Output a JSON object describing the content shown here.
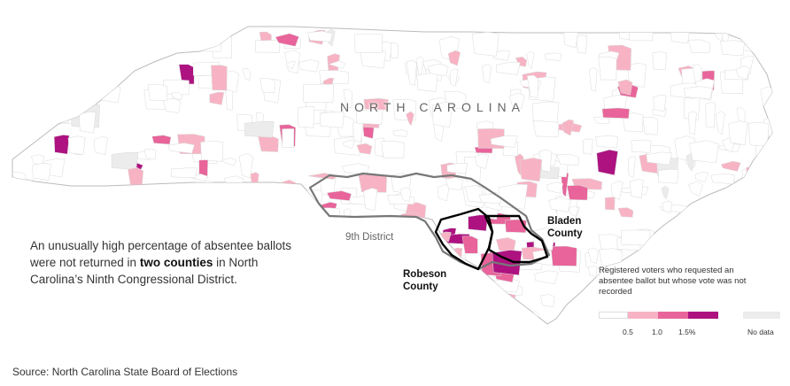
{
  "map": {
    "state_name": "NORTH CAROLINA",
    "district_label": "9th District",
    "counties": [
      {
        "id": "robeson",
        "line1": "Robeson",
        "line2": "County"
      },
      {
        "id": "bladen",
        "line1": "Bladen",
        "line2": "County"
      }
    ]
  },
  "annotation": {
    "text_before": "An unusually high percentage of absentee ballots were not returned in ",
    "bold": "two counties",
    "text_after": " in North Carolina’s Ninth Congressional District."
  },
  "legend": {
    "title": "Registered voters who requested an absentee ballot but whose vote was not recorded",
    "bins": [
      {
        "color": "#ffffff"
      },
      {
        "color": "#f7b3c4"
      },
      {
        "color": "#e8649a"
      },
      {
        "color": "#ad1280"
      }
    ],
    "ticks": [
      "0.5",
      "1.0",
      "1.5%"
    ],
    "no_data": {
      "label": "No data",
      "color": "#ececec"
    }
  },
  "colors": {
    "background": "#ffffff",
    "state_fill": "#ffffff",
    "precinct_border": "#d9d9d9",
    "district_border": "#777777",
    "county_border": "#000000"
  },
  "source": "Source: North Carolina State Board of Elections"
}
